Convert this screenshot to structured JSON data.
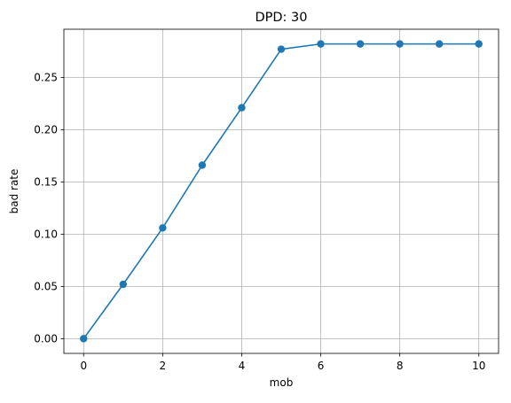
{
  "chart_data": {
    "type": "line",
    "title": "DPD: 30",
    "xlabel": "mob",
    "ylabel": "bad rate",
    "x": [
      0,
      1,
      2,
      3,
      4,
      5,
      6,
      7,
      8,
      9,
      10
    ],
    "series": [
      {
        "values": [
          0.0,
          0.052,
          0.106,
          0.166,
          0.221,
          0.277,
          0.282,
          0.282,
          0.282,
          0.282,
          0.282
        ],
        "color": "#1f77b4",
        "marker": "circle"
      }
    ],
    "xticks": [
      0,
      2,
      4,
      6,
      8,
      10
    ],
    "xtick_labels": [
      "0",
      "2",
      "4",
      "6",
      "8",
      "10"
    ],
    "yticks": [
      0.0,
      0.05,
      0.1,
      0.15,
      0.2,
      0.25
    ],
    "ytick_labels": [
      "0.00",
      "0.05",
      "0.10",
      "0.15",
      "0.20",
      "0.25"
    ],
    "xlim": [
      -0.5,
      10.5
    ],
    "ylim": [
      -0.0141,
      0.2961
    ],
    "grid": true,
    "grid_color": "#b0b0b0",
    "legend": "none"
  }
}
